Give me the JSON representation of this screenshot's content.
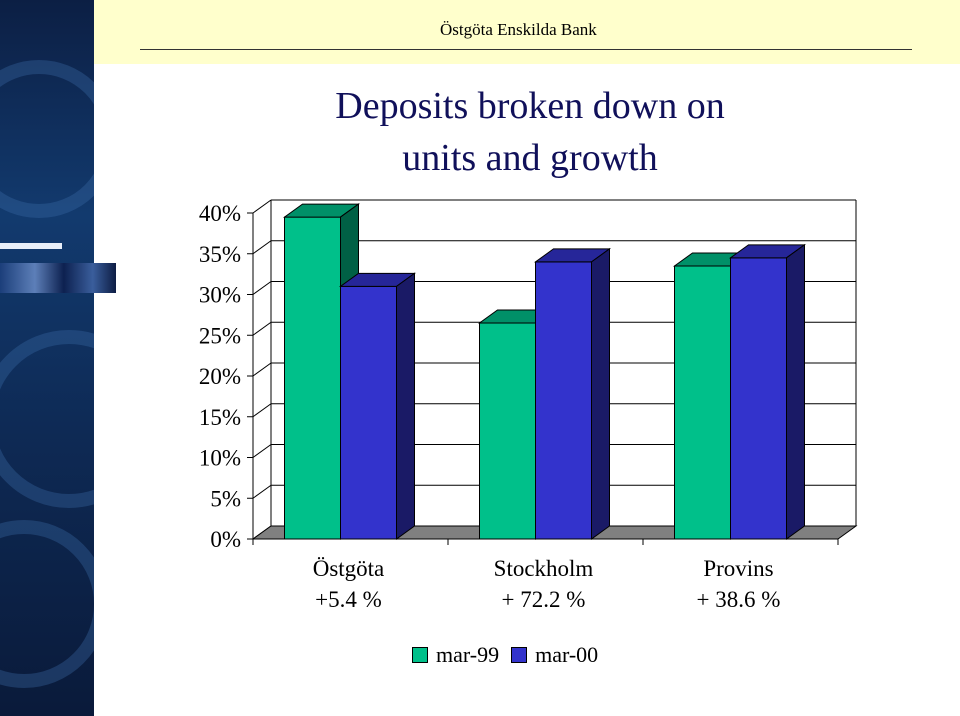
{
  "header": {
    "bank_name": "Östgöta Enskilda Bank"
  },
  "chart_data": {
    "type": "bar",
    "title": "Deposits broken down on units and growth",
    "title_lines": [
      "Deposits broken down on",
      "units and growth"
    ],
    "categories": [
      "Östgöta",
      "Stockholm",
      "Provins"
    ],
    "category_sublabels": [
      "+5.4 %",
      "+ 72.2 %",
      "+ 38.6 %"
    ],
    "series": [
      {
        "name": "mar-99",
        "color": "#00c08a",
        "values": [
          39.5,
          26.5,
          33.5
        ]
      },
      {
        "name": "mar-00",
        "color": "#3333cc",
        "values": [
          31.0,
          34.0,
          34.5
        ]
      }
    ],
    "ylim": [
      0,
      40
    ],
    "yticks": [
      "0%",
      "5%",
      "10%",
      "15%",
      "20%",
      "25%",
      "30%",
      "35%",
      "40%"
    ],
    "ytick_values": [
      0,
      5,
      10,
      15,
      20,
      25,
      30,
      35,
      40
    ],
    "legend_position": "bottom",
    "three_d": true
  }
}
